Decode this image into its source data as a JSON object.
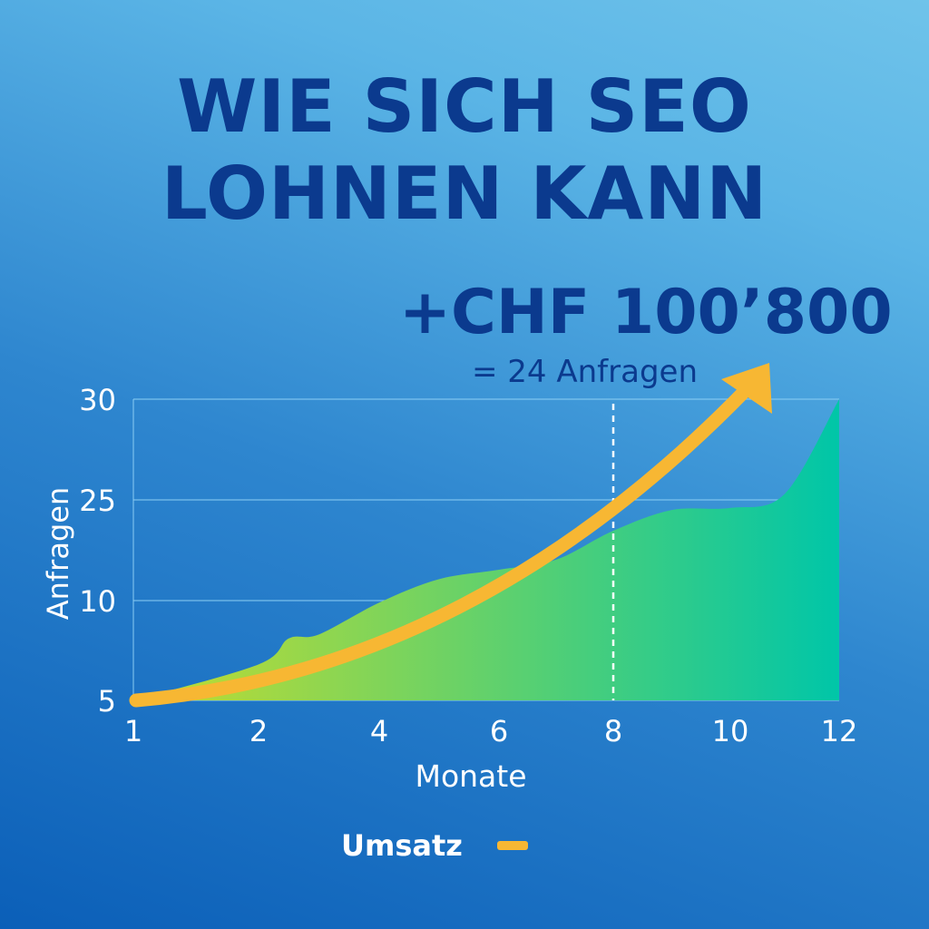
{
  "title": {
    "line1": "WIE SICH SEO",
    "line2": "LOHNEN KANN"
  },
  "headline": {
    "value": "+CHF 100’800",
    "sub": "= 24 Anfragen"
  },
  "colors": {
    "title": "#0b3a8e",
    "revenue_arrow": "#f7b733",
    "area_start": "#c6dc2e",
    "area_end": "#00c6a8",
    "gridline": "#8fd0f5",
    "axis_text": "#ffffff"
  },
  "chart_data": {
    "type": "area",
    "xlabel": "Monate",
    "ylabel": "Anfragen",
    "x_ticks": [
      "1",
      "2",
      "4",
      "6",
      "8",
      "10",
      "12"
    ],
    "y_ticks": [
      "5",
      "10",
      "25",
      "30"
    ],
    "x": [
      1,
      2,
      2.5,
      3,
      4,
      5,
      6,
      7,
      8,
      9,
      10,
      11,
      12
    ],
    "values": [
      5,
      6.8,
      8.1,
      8.3,
      9.9,
      13.2,
      14.6,
      16.1,
      20.4,
      23.5,
      23.8,
      25.3,
      30
    ],
    "ylim": [
      5,
      30
    ],
    "marker_x": 8,
    "series": [
      {
        "name": "Umsatz",
        "type": "arrow",
        "color": "#f7b733"
      }
    ],
    "legend": {
      "label": "Umsatz",
      "placement": "bottom-center"
    },
    "grid": true
  }
}
